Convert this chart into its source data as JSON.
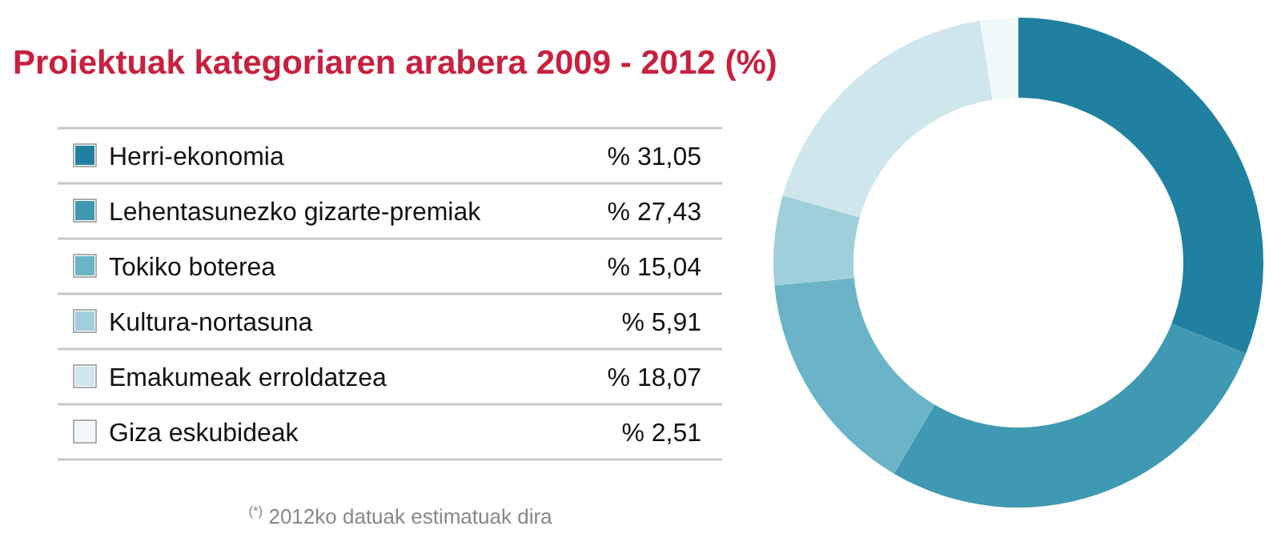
{
  "chart_data": {
    "type": "donut",
    "title": "Proiektuak kategoriaren arabera 2009 - 2012 (%)",
    "categories": [
      "Herri-ekonomia",
      "Lehentasunezko gizarte-premiak",
      "Tokiko boterea",
      "Kultura-nortasuna",
      "Emakumeak erroldatzea",
      "Giza eskubideak"
    ],
    "values": [
      31.05,
      27.43,
      15.04,
      5.91,
      18.07,
      2.51
    ],
    "value_labels": [
      "% 31,05",
      "% 27,43",
      "% 15,04",
      "% 5,91",
      "% 18,07",
      "% 2,51"
    ],
    "colors": [
      "#1f819f",
      "#3f99b2",
      "#6bb4c8",
      "#9fcfdb",
      "#cfe6ed",
      "#f1f8fa"
    ],
    "legend": "left",
    "annotations": [
      "$^{(*)}$ 2012ko datuak estimatuak dira"
    ]
  }
}
